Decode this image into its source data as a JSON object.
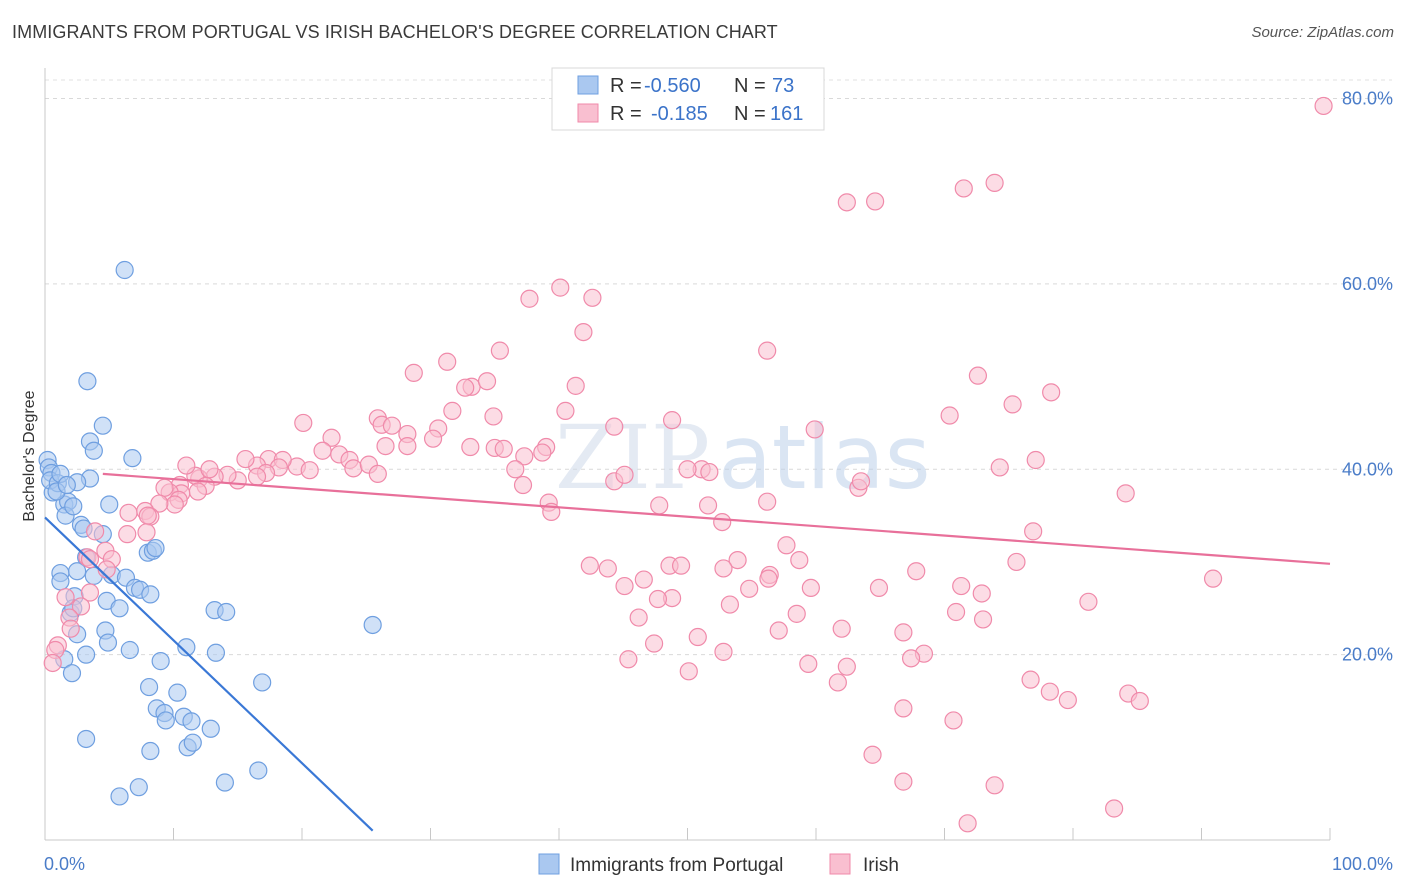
{
  "title": "IMMIGRANTS FROM PORTUGAL VS IRISH BACHELOR'S DEGREE CORRELATION CHART",
  "source": "Source: ZipAtlas.com",
  "watermark": {
    "zip": "ZIP",
    "atlas": "atlas"
  },
  "legend_top": {
    "rows": [
      {
        "r_label": "R =",
        "r_value": "-0.560",
        "n_label": "N =",
        "n_value": "73"
      },
      {
        "r_label": "R =",
        "r_value": "-0.185",
        "n_label": "N =",
        "n_value": "161"
      }
    ]
  },
  "chart_data": {
    "type": "scatter",
    "title": "IMMIGRANTS FROM PORTUGAL VS IRISH BACHELOR'S DEGREE CORRELATION CHART",
    "xlabel": "",
    "ylabel": "Bachelor's Degree",
    "xlim": [
      0,
      100
    ],
    "ylim": [
      0,
      82
    ],
    "x_tick_labels": [
      "0.0%",
      "100.0%"
    ],
    "y_ticks": [
      20,
      40,
      60,
      80
    ],
    "y_tick_labels": [
      "20.0%",
      "40.0%",
      "60.0%",
      "80.0%"
    ],
    "grid": true,
    "legend_position": "top-center",
    "series": [
      {
        "name": "Immigrants from Portugal",
        "color": "#6f9fe0",
        "fill": "#aac8f0",
        "line_color": "#3a78d6",
        "R": -0.56,
        "N": 73,
        "trend": [
          [
            0,
            34.8
          ],
          [
            25.5,
            1.0
          ]
        ],
        "points": [
          [
            0.2,
            41.0
          ],
          [
            0.3,
            40.2
          ],
          [
            0.5,
            39.6
          ],
          [
            0.6,
            37.5
          ],
          [
            0.4,
            38.8
          ],
          [
            1.0,
            38.5
          ],
          [
            1.2,
            39.5
          ],
          [
            1.5,
            36.2
          ],
          [
            1.8,
            36.5
          ],
          [
            1.6,
            35.0
          ],
          [
            0.9,
            37.6
          ],
          [
            2.2,
            36.0
          ],
          [
            3.3,
            49.5
          ],
          [
            3.5,
            43.0
          ],
          [
            3.8,
            42.0
          ],
          [
            4.5,
            44.7
          ],
          [
            6.2,
            61.5
          ],
          [
            6.8,
            41.2
          ],
          [
            3.5,
            39.0
          ],
          [
            2.5,
            38.6
          ],
          [
            5.0,
            36.2
          ],
          [
            2.8,
            34.0
          ],
          [
            3.0,
            33.6
          ],
          [
            4.5,
            33.0
          ],
          [
            3.2,
            30.5
          ],
          [
            2.5,
            29.0
          ],
          [
            1.2,
            28.8
          ],
          [
            3.8,
            28.5
          ],
          [
            5.2,
            28.6
          ],
          [
            6.3,
            28.3
          ],
          [
            7.0,
            27.2
          ],
          [
            7.4,
            27.0
          ],
          [
            8.2,
            26.5
          ],
          [
            1.2,
            27.9
          ],
          [
            2.3,
            26.3
          ],
          [
            4.8,
            25.8
          ],
          [
            5.8,
            25.0
          ],
          [
            2.0,
            24.5
          ],
          [
            2.5,
            22.2
          ],
          [
            4.7,
            22.6
          ],
          [
            4.9,
            21.3
          ],
          [
            6.6,
            20.5
          ],
          [
            3.2,
            20.0
          ],
          [
            1.5,
            19.5
          ],
          [
            9.0,
            19.3
          ],
          [
            13.3,
            20.2
          ],
          [
            11.0,
            20.8
          ],
          [
            2.1,
            18.0
          ],
          [
            13.2,
            24.8
          ],
          [
            14.1,
            24.6
          ],
          [
            8.0,
            31.0
          ],
          [
            8.4,
            31.2
          ],
          [
            8.6,
            31.5
          ],
          [
            8.1,
            16.5
          ],
          [
            8.7,
            14.2
          ],
          [
            10.3,
            15.9
          ],
          [
            9.3,
            13.7
          ],
          [
            9.4,
            12.9
          ],
          [
            10.8,
            13.3
          ],
          [
            11.4,
            12.8
          ],
          [
            12.9,
            12.0
          ],
          [
            11.1,
            10.0
          ],
          [
            11.5,
            10.5
          ],
          [
            3.2,
            10.9
          ],
          [
            8.2,
            9.6
          ],
          [
            16.9,
            17.0
          ],
          [
            16.6,
            7.5
          ],
          [
            14.0,
            6.2
          ],
          [
            7.3,
            5.7
          ],
          [
            5.8,
            4.7
          ],
          [
            25.5,
            23.2
          ],
          [
            2.2,
            25.0
          ],
          [
            1.7,
            38.3
          ]
        ]
      },
      {
        "name": "Irish",
        "color": "#f08aaa",
        "fill": "#f9bfd0",
        "line_color": "#e8709a",
        "R": -0.185,
        "N": 161,
        "trend": [
          [
            4.5,
            39.5
          ],
          [
            100,
            29.8
          ]
        ],
        "points": [
          [
            99.5,
            79.2
          ],
          [
            73.9,
            70.9
          ],
          [
            71.5,
            70.3
          ],
          [
            62.4,
            68.8
          ],
          [
            64.6,
            68.9
          ],
          [
            40.1,
            59.6
          ],
          [
            37.7,
            58.4
          ],
          [
            42.6,
            58.5
          ],
          [
            41.9,
            54.8
          ],
          [
            56.2,
            52.8
          ],
          [
            35.4,
            52.8
          ],
          [
            31.3,
            51.6
          ],
          [
            28.7,
            50.4
          ],
          [
            33.2,
            48.9
          ],
          [
            32.7,
            48.8
          ],
          [
            34.4,
            49.5
          ],
          [
            41.3,
            49.0
          ],
          [
            78.3,
            48.3
          ],
          [
            75.3,
            47.0
          ],
          [
            72.6,
            50.1
          ],
          [
            70.4,
            45.8
          ],
          [
            34.9,
            45.7
          ],
          [
            31.7,
            46.3
          ],
          [
            25.9,
            45.5
          ],
          [
            26.2,
            44.8
          ],
          [
            27.0,
            44.7
          ],
          [
            20.1,
            45.0
          ],
          [
            30.6,
            44.4
          ],
          [
            28.2,
            43.8
          ],
          [
            40.5,
            46.3
          ],
          [
            44.3,
            44.6
          ],
          [
            48.8,
            45.3
          ],
          [
            22.3,
            43.4
          ],
          [
            28.2,
            42.5
          ],
          [
            30.2,
            43.3
          ],
          [
            35.0,
            42.3
          ],
          [
            39.0,
            42.4
          ],
          [
            38.7,
            41.8
          ],
          [
            37.3,
            41.4
          ],
          [
            21.6,
            42.0
          ],
          [
            22.9,
            41.6
          ],
          [
            23.7,
            41.0
          ],
          [
            24.0,
            40.1
          ],
          [
            26.5,
            42.5
          ],
          [
            25.2,
            40.5
          ],
          [
            25.9,
            39.5
          ],
          [
            19.6,
            40.3
          ],
          [
            20.6,
            39.9
          ],
          [
            17.4,
            41.1
          ],
          [
            16.5,
            40.4
          ],
          [
            15.6,
            41.1
          ],
          [
            18.5,
            41.0
          ],
          [
            18.2,
            40.2
          ],
          [
            17.2,
            39.6
          ],
          [
            16.5,
            39.2
          ],
          [
            15.0,
            38.8
          ],
          [
            14.2,
            39.4
          ],
          [
            13.2,
            39.2
          ],
          [
            12.0,
            39.0
          ],
          [
            11.7,
            39.3
          ],
          [
            12.8,
            40.0
          ],
          [
            11.0,
            40.4
          ],
          [
            10.5,
            38.3
          ],
          [
            12.5,
            38.2
          ],
          [
            11.9,
            37.6
          ],
          [
            10.6,
            37.4
          ],
          [
            9.7,
            37.5
          ],
          [
            9.3,
            38.0
          ],
          [
            10.4,
            36.7
          ],
          [
            10.1,
            36.2
          ],
          [
            8.9,
            36.3
          ],
          [
            7.8,
            35.5
          ],
          [
            8.2,
            34.9
          ],
          [
            8.0,
            35.0
          ],
          [
            6.5,
            35.3
          ],
          [
            7.9,
            33.2
          ],
          [
            6.4,
            33.0
          ],
          [
            3.9,
            33.3
          ],
          [
            4.7,
            31.2
          ],
          [
            3.3,
            30.5
          ],
          [
            5.2,
            30.3
          ],
          [
            4.8,
            29.2
          ],
          [
            3.5,
            30.3
          ],
          [
            3.5,
            26.7
          ],
          [
            1.6,
            26.2
          ],
          [
            2.8,
            25.2
          ],
          [
            1.9,
            24.0
          ],
          [
            2.0,
            22.8
          ],
          [
            1.0,
            21.0
          ],
          [
            0.8,
            20.5
          ],
          [
            0.6,
            19.1
          ],
          [
            37.2,
            38.3
          ],
          [
            44.3,
            38.7
          ],
          [
            33.1,
            42.4
          ],
          [
            35.7,
            42.2
          ],
          [
            36.6,
            40.0
          ],
          [
            51.1,
            40.0
          ],
          [
            51.7,
            39.7
          ],
          [
            45.1,
            39.4
          ],
          [
            50.0,
            40.0
          ],
          [
            51.6,
            36.1
          ],
          [
            47.8,
            36.1
          ],
          [
            39.2,
            36.4
          ],
          [
            39.4,
            35.4
          ],
          [
            52.7,
            34.3
          ],
          [
            56.2,
            36.5
          ],
          [
            59.9,
            44.3
          ],
          [
            63.3,
            38.0
          ],
          [
            63.5,
            38.7
          ],
          [
            74.3,
            40.2
          ],
          [
            77.1,
            41.0
          ],
          [
            84.1,
            37.4
          ],
          [
            76.9,
            33.3
          ],
          [
            75.6,
            30.0
          ],
          [
            57.7,
            31.8
          ],
          [
            58.7,
            30.2
          ],
          [
            53.9,
            30.2
          ],
          [
            52.8,
            29.3
          ],
          [
            56.4,
            28.6
          ],
          [
            56.3,
            28.2
          ],
          [
            42.4,
            29.6
          ],
          [
            43.8,
            29.3
          ],
          [
            46.6,
            28.1
          ],
          [
            48.6,
            29.6
          ],
          [
            48.8,
            26.1
          ],
          [
            45.1,
            27.4
          ],
          [
            47.7,
            26.0
          ],
          [
            49.5,
            29.6
          ],
          [
            54.8,
            27.1
          ],
          [
            59.6,
            27.2
          ],
          [
            64.9,
            27.2
          ],
          [
            67.8,
            29.0
          ],
          [
            71.3,
            27.4
          ],
          [
            72.9,
            26.6
          ],
          [
            70.9,
            24.6
          ],
          [
            73.0,
            23.8
          ],
          [
            90.9,
            28.2
          ],
          [
            81.2,
            25.7
          ],
          [
            58.5,
            24.4
          ],
          [
            53.3,
            25.4
          ],
          [
            50.8,
            21.9
          ],
          [
            52.8,
            20.3
          ],
          [
            57.1,
            22.6
          ],
          [
            62.0,
            22.8
          ],
          [
            66.8,
            22.4
          ],
          [
            68.4,
            20.1
          ],
          [
            67.4,
            19.6
          ],
          [
            59.4,
            19.0
          ],
          [
            62.4,
            18.7
          ],
          [
            61.7,
            17.0
          ],
          [
            50.1,
            18.2
          ],
          [
            45.4,
            19.5
          ],
          [
            46.2,
            24.0
          ],
          [
            47.4,
            21.2
          ],
          [
            66.8,
            14.2
          ],
          [
            70.7,
            12.9
          ],
          [
            76.7,
            17.3
          ],
          [
            78.2,
            16.0
          ],
          [
            79.6,
            15.1
          ],
          [
            84.3,
            15.8
          ],
          [
            85.2,
            15.0
          ],
          [
            64.4,
            9.2
          ],
          [
            66.8,
            6.3
          ],
          [
            73.9,
            5.9
          ],
          [
            83.2,
            3.4
          ],
          [
            71.8,
            1.8
          ]
        ]
      }
    ]
  },
  "bottom_legend": [
    {
      "label": "Immigrants from Portugal",
      "color": "#aac8f0",
      "border": "#6f9fe0"
    },
    {
      "label": "Irish",
      "color": "#f9bfd0",
      "border": "#f08aaa"
    }
  ]
}
